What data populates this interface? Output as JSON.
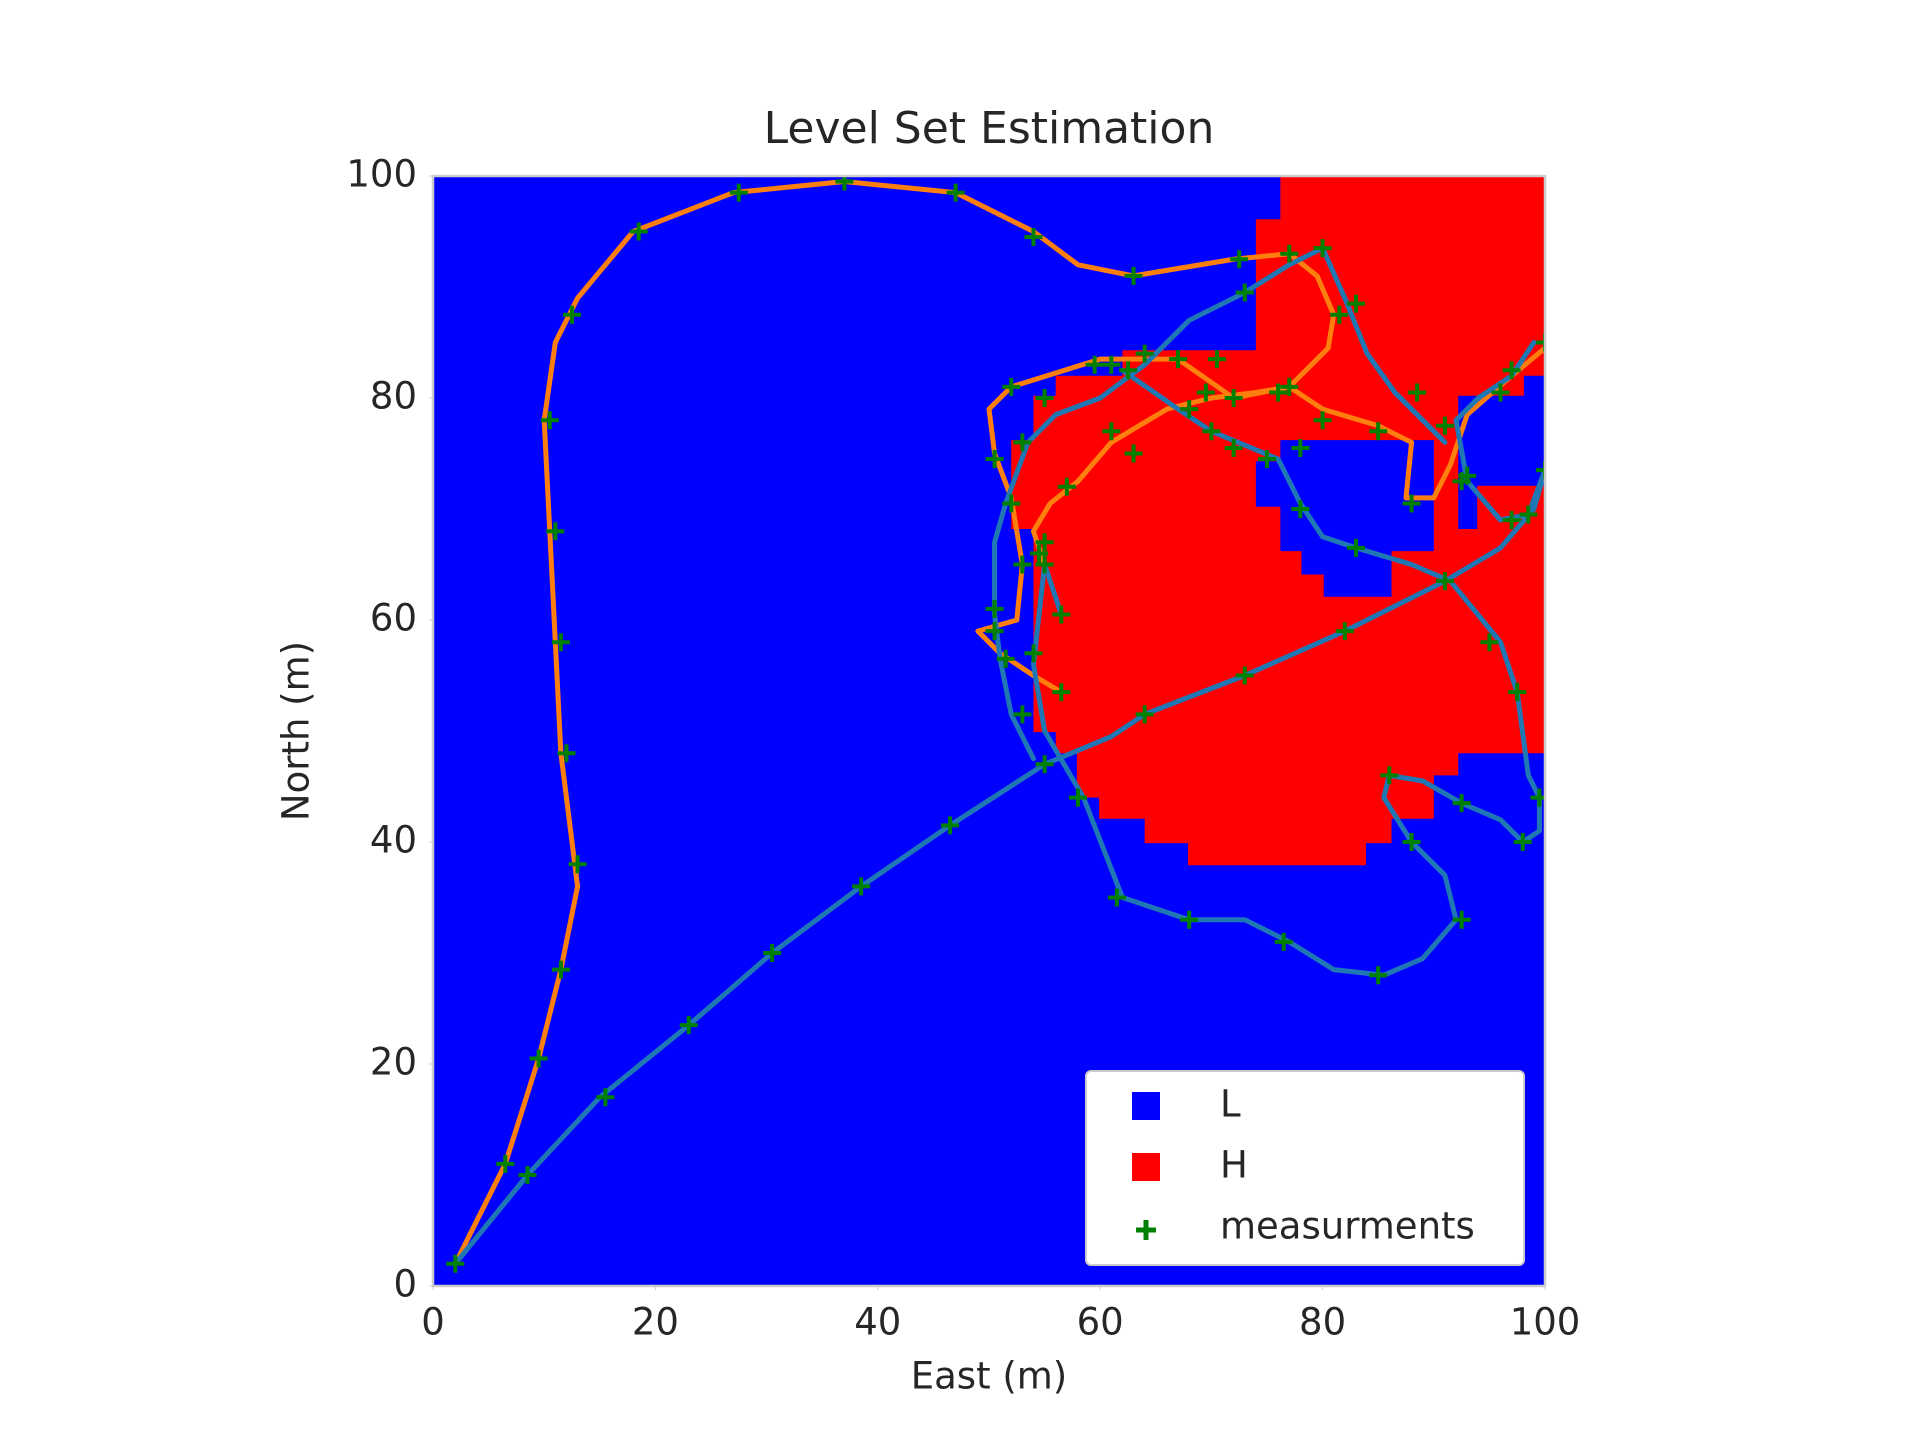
{
  "chart_data": {
    "type": "level_set",
    "title": "Level Set Estimation",
    "xlabel": "East (m)",
    "ylabel": "North (m)",
    "xlim": [
      0,
      100
    ],
    "ylim": [
      0,
      100
    ],
    "xticks": [
      0,
      20,
      40,
      60,
      80,
      100
    ],
    "yticks": [
      0,
      20,
      40,
      60,
      80,
      100
    ],
    "grid": false,
    "legend": "lower right",
    "classes": [
      {
        "name": "L",
        "color": "#0000ff",
        "regions": [
          {
            "x": [
              74,
              76.2,
              76.2,
              90,
              90,
              86.2,
              86.2,
              80.1,
              80.1,
              78.1,
              78.1,
              76.2,
              76.2,
              74
            ],
            "y": [
              74.3,
              74.3,
              76.2,
              76.2,
              66.2,
              66.2,
              62.1,
              62.1,
              64.1,
              64.1,
              66.2,
              66.2,
              70.2,
              70.2
            ]
          },
          {
            "x": [
              92.2,
              98.1,
              98.1,
              100,
              100,
              93.9,
              93.9,
              92.2
            ],
            "y": [
              80.2,
              80.2,
              82,
              82,
              72.1,
              72.1,
              68.2,
              68.2
            ]
          }
        ]
      },
      {
        "name": "H",
        "color": "#ff0000",
        "regions": [
          {
            "x": [
              76.2,
              100,
              100,
              92.2,
              92.2,
              90,
              90,
              86.2,
              86.2,
              83.9,
              83.9,
              67.9,
              67.9,
              64,
              64,
              59.9,
              59.9,
              57.9,
              57.9,
              56,
              56,
              54,
              54,
              52,
              52,
              54,
              54,
              56,
              56,
              62,
              62,
              74,
              74,
              76.2
            ],
            "y": [
              100,
              100,
              48,
              48,
              46,
              46,
              42.1,
              42.1,
              39.9,
              39.9,
              37.9,
              37.9,
              39.9,
              39.9,
              42.1,
              42.1,
              44,
              44,
              48,
              48,
              49.9,
              49.9,
              68.2,
              68.2,
              76.2,
              76.2,
              80.2,
              80.2,
              82,
              82,
              84.3,
              84.3,
              96.1,
              96.1
            ]
          }
        ]
      }
    ],
    "paths": [
      {
        "color": "#ff7f0e",
        "x": [
          2,
          6.5,
          9.5,
          11.5,
          13,
          12.5,
          11.5,
          11,
          10.5,
          10,
          11,
          13,
          18,
          27,
          37,
          47,
          54,
          58,
          63,
          72,
          77,
          79.5,
          81,
          80.5,
          77,
          72,
          67,
          60,
          52,
          50,
          50.5,
          52,
          53,
          52.5,
          49,
          51,
          54,
          56.5,
          null,
          55,
          54,
          55.5,
          58,
          61,
          66,
          70,
          74,
          77,
          80,
          85,
          88,
          87.5,
          90,
          91.5,
          93,
          97,
          100
        ],
        "y": [
          2,
          11,
          20.5,
          28.5,
          36,
          40,
          48,
          58,
          68,
          78,
          85,
          89,
          95,
          98.5,
          99.5,
          98.5,
          95,
          92,
          91,
          92.5,
          93,
          91,
          87.5,
          84.5,
          81,
          80,
          83.5,
          83.5,
          81,
          79,
          75,
          71,
          65,
          60,
          59,
          57,
          55,
          53.5,
          null,
          65,
          68,
          70.5,
          72.5,
          76,
          79,
          80,
          80.5,
          81,
          79,
          77.5,
          76,
          71,
          71,
          74,
          78.5,
          82,
          84.5
        ]
      },
      {
        "color": "#1f77b4",
        "x": [
          2,
          8.5,
          15,
          23,
          30.5,
          38.5,
          46.5,
          55,
          61,
          64,
          73,
          82,
          91,
          96,
          99,
          100,
          98.5,
          96,
          93,
          92,
          94,
          97,
          99,
          null,
          54,
          52,
          51,
          50.5,
          50.5,
          51.5,
          53.5,
          56,
          60,
          64,
          68,
          73,
          77,
          80,
          82,
          84,
          86.5,
          89,
          91,
          null,
          62,
          67,
          70,
          76,
          78,
          80,
          83,
          88,
          91.5,
          96,
          97.5,
          98.5,
          99.5,
          99.5,
          98,
          96,
          92.5,
          89,
          86,
          85.5,
          88,
          91,
          92,
          89,
          85.5,
          81,
          77,
          73,
          68,
          62,
          58.5,
          55,
          54,
          55,
          56.5
        ],
        "y": [
          2,
          10,
          17,
          23.5,
          30,
          36,
          41.5,
          47,
          49.5,
          51.5,
          55,
          59,
          63.5,
          66.5,
          70,
          73.5,
          69.5,
          69,
          72.5,
          78,
          80,
          82,
          85,
          null,
          47.5,
          51.5,
          56.5,
          60.5,
          67,
          70.5,
          76,
          78.5,
          80,
          83,
          87,
          89.5,
          92,
          93.5,
          89,
          84,
          80.5,
          78,
          76,
          null,
          82.5,
          79,
          77,
          74.5,
          70.5,
          67.5,
          66.5,
          65,
          63.5,
          58,
          53.5,
          46,
          44,
          41,
          40,
          42,
          43.5,
          45.5,
          46,
          44,
          40,
          37,
          33,
          29.5,
          28,
          28.5,
          31,
          33,
          33,
          35,
          44,
          50,
          56,
          65,
          60.5
        ]
      }
    ],
    "measurements": {
      "name": "measurments",
      "color": "#008000",
      "x": [
        2,
        6.5,
        8.5,
        9.5,
        11.5,
        13,
        12,
        11.5,
        11,
        10.5,
        12.5,
        18.5,
        27.5,
        37,
        47,
        54,
        63,
        72.5,
        77,
        80,
        73,
        81.5,
        83,
        59.5,
        61,
        64,
        67,
        70.5,
        62.5,
        52,
        55,
        72,
        69.5,
        76,
        77,
        88.5,
        91,
        97,
        96,
        100,
        80,
        85,
        78,
        75,
        72,
        70,
        68,
        61,
        63,
        57,
        53,
        50.5,
        52,
        55,
        54.5,
        53,
        55,
        56.5,
        50.5,
        50.5,
        51.5,
        54,
        56.5,
        53,
        55,
        58,
        64,
        73,
        82,
        91,
        92.5,
        93,
        88,
        78,
        83,
        95,
        97.5,
        99.5,
        98,
        92.5,
        86,
        88,
        92.5,
        85,
        76.5,
        68,
        61.5,
        46.5,
        38.5,
        30.5,
        23,
        15.5,
        98.5,
        97,
        100
      ],
      "y": [
        2,
        11,
        10,
        20.5,
        28.5,
        38,
        48,
        58,
        68,
        78,
        87.5,
        95,
        98.5,
        99.5,
        98.5,
        94.5,
        91,
        92.5,
        93,
        93.5,
        89.5,
        87.5,
        88.5,
        83,
        83,
        84,
        83.5,
        83.5,
        82.5,
        81,
        80,
        80,
        80.5,
        80.5,
        81,
        80.5,
        77.5,
        82.5,
        80.5,
        85,
        78,
        77,
        75.5,
        74.5,
        75.5,
        77,
        79,
        77,
        75,
        72,
        76,
        74.5,
        70.5,
        67,
        66,
        65,
        65,
        60.5,
        61,
        59,
        56.5,
        57,
        53.5,
        51.5,
        47,
        44,
        51.5,
        55,
        59,
        63.5,
        72.5,
        73,
        70.5,
        70,
        66.5,
        58,
        53.5,
        44,
        40,
        43.5,
        46,
        40,
        33,
        28,
        31,
        33,
        35,
        41.5,
        36,
        30,
        23.5,
        17,
        69.5,
        69,
        73.5
      ]
    }
  }
}
